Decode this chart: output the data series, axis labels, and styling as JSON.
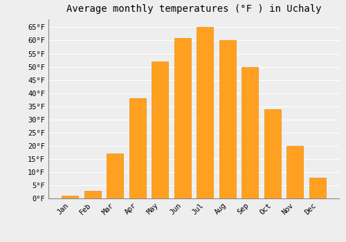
{
  "title": "Average monthly temperatures (°F ) in Uchaly",
  "months": [
    "Jan",
    "Feb",
    "Mar",
    "Apr",
    "May",
    "Jun",
    "Jul",
    "Aug",
    "Sep",
    "Oct",
    "Nov",
    "Dec"
  ],
  "values": [
    1,
    3,
    17,
    38,
    52,
    61,
    65,
    60,
    50,
    34,
    20,
    8
  ],
  "bar_color": "#FFA020",
  "bar_edge_color": "#E89010",
  "background_color": "#eeeeee",
  "grid_color": "#ffffff",
  "ylim": [
    0,
    68
  ],
  "yticks": [
    0,
    5,
    10,
    15,
    20,
    25,
    30,
    35,
    40,
    45,
    50,
    55,
    60,
    65
  ],
  "ytick_labels": [
    "0°F",
    "5°F",
    "10°F",
    "15°F",
    "20°F",
    "25°F",
    "30°F",
    "35°F",
    "40°F",
    "45°F",
    "50°F",
    "55°F",
    "60°F",
    "65°F"
  ],
  "title_fontsize": 10,
  "tick_fontsize": 7.5,
  "font_family": "monospace",
  "bar_width": 0.75,
  "figsize": [
    5.0,
    3.5
  ],
  "dpi": 100
}
